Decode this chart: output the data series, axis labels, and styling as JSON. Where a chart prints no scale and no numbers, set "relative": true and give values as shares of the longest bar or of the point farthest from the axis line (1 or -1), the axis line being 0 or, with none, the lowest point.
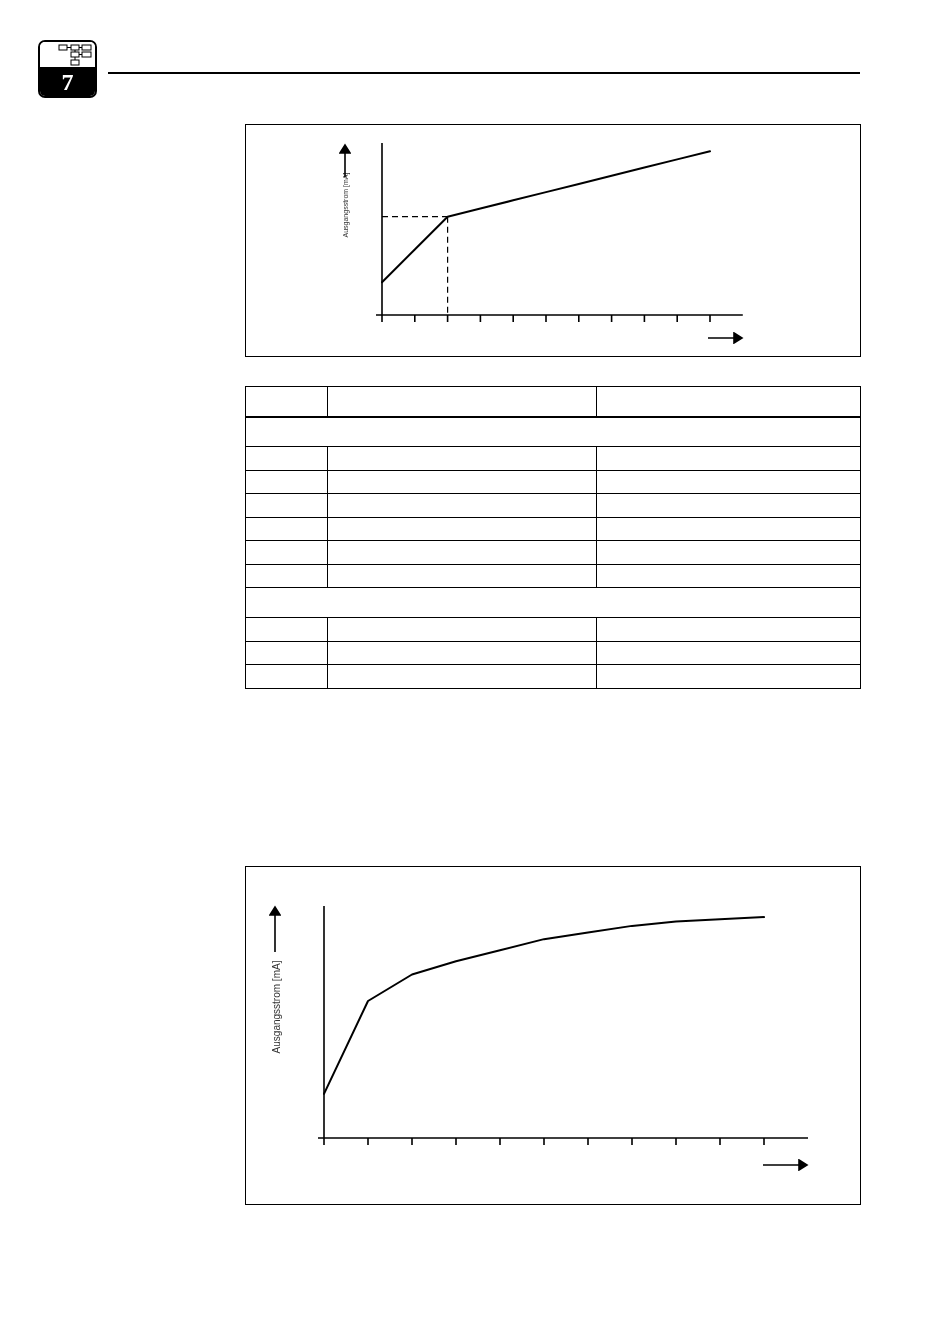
{
  "chart_data": [
    {
      "type": "line",
      "ylabel": "Ausgangsstrom [mA]",
      "annotations": [
        "7"
      ],
      "relative": true,
      "categories": [
        null,
        null,
        null,
        null,
        null,
        null,
        null,
        null,
        null,
        null,
        null
      ],
      "series": [
        {
          "color": "#000000",
          "values": [
            0.2,
            0.4,
            0.6,
            0.65,
            0.7,
            0.75,
            0.8,
            0.85,
            0.9,
            0.95,
            1.0
          ]
        }
      ],
      "ref_lines": [
        {
          "axis": "y",
          "value": 0.6,
          "line_style": "dashed",
          "color": "#000000"
        }
      ]
    },
    {
      "type": "line",
      "ylabel": "Ausgangsstrom [mA]",
      "relative": true,
      "categories": [
        null,
        null,
        null,
        null,
        null,
        null,
        null,
        null,
        null,
        null,
        null
      ],
      "series": [
        {
          "color": "#000000",
          "values": [
            0.2,
            0.62,
            0.74,
            0.8,
            0.85,
            0.9,
            0.93,
            0.96,
            0.98,
            0.99,
            1.0
          ]
        }
      ]
    }
  ]
}
